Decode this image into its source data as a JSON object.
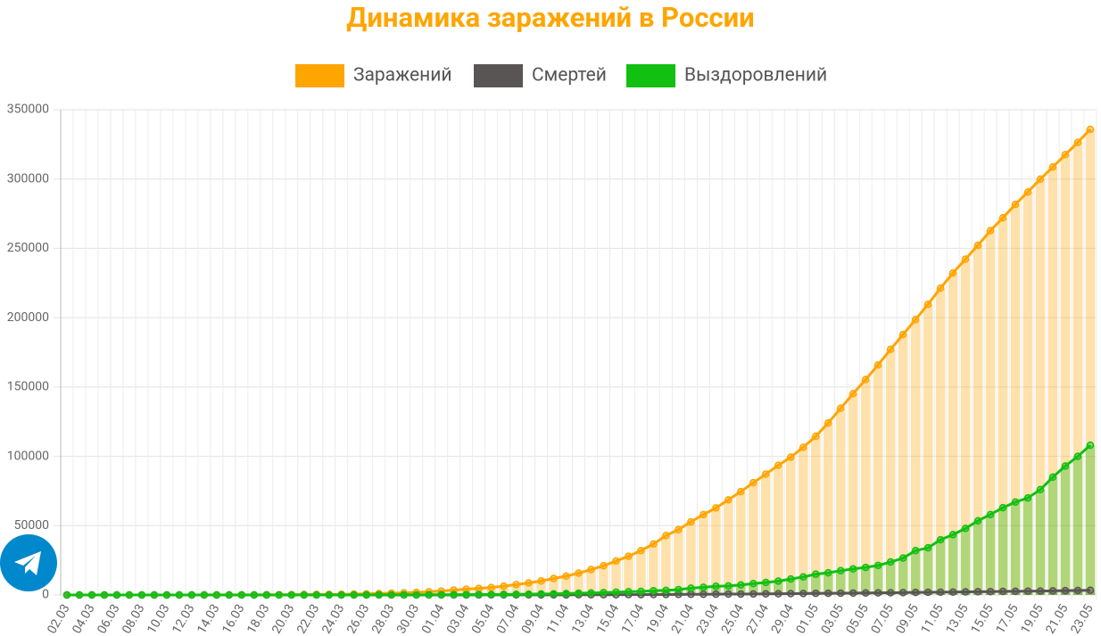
{
  "chart_data": {
    "type": "bar-line",
    "title": "Динамика заражений в России",
    "categories": [
      "02.03",
      null,
      "04.03",
      null,
      "06.03",
      null,
      "08.03",
      null,
      "10.03",
      null,
      "12.03",
      null,
      "14.03",
      null,
      "16.03",
      null,
      "18.03",
      null,
      "20.03",
      null,
      "22.03",
      null,
      "24.03",
      null,
      "26.03",
      null,
      "28.03",
      null,
      "30.03",
      null,
      "01.04",
      null,
      "03.04",
      null,
      "05.04",
      null,
      "07.04",
      null,
      "09.04",
      null,
      "11.04",
      null,
      "13.04",
      null,
      "15.04",
      null,
      "17.04",
      null,
      "19.04",
      null,
      "21.04",
      null,
      "23.04",
      null,
      "25.04",
      null,
      "27.04",
      null,
      "29.04",
      null,
      "01.05",
      null,
      "03.05",
      null,
      "05.05",
      null,
      "07.05",
      null,
      "09.05",
      null,
      "11.05",
      null,
      "13.05",
      null,
      "15.05",
      null,
      "17.05",
      null,
      "19.05",
      null,
      "21.05",
      null,
      "23.05"
    ],
    "series": [
      {
        "name": "Заражений",
        "color": "#ffa500",
        "values": [
          3,
          3,
          3,
          4,
          13,
          13,
          17,
          17,
          20,
          28,
          34,
          45,
          59,
          63,
          93,
          114,
          147,
          199,
          253,
          306,
          367,
          438,
          495,
          658,
          840,
          1036,
          1264,
          1534,
          1836,
          2337,
          2777,
          3548,
          4149,
          4731,
          5389,
          6343,
          7497,
          8672,
          10131,
          11917,
          13584,
          15770,
          18328,
          21102,
          24490,
          27938,
          32008,
          36793,
          42853,
          47121,
          52763,
          57999,
          62773,
          68622,
          74588,
          80949,
          87147,
          93558,
          99399,
          106498,
          114431,
          124054,
          134687,
          145268,
          155370,
          165929,
          177160,
          187859,
          198676,
          209688,
          221344,
          232243,
          242271,
          252245,
          262843,
          272043,
          281752,
          290678,
          299941,
          308705,
          317554,
          326448,
          335882
        ]
      },
      {
        "name": "Смертей",
        "color": "#5a5555",
        "values": [
          0,
          0,
          0,
          0,
          0,
          0,
          0,
          0,
          0,
          0,
          0,
          0,
          0,
          0,
          0,
          0,
          0,
          1,
          1,
          1,
          1,
          1,
          1,
          3,
          3,
          4,
          4,
          8,
          9,
          17,
          22,
          30,
          34,
          43,
          45,
          47,
          58,
          63,
          76,
          94,
          106,
          130,
          148,
          170,
          198,
          232,
          273,
          313,
          361,
          405,
          456,
          513,
          555,
          615,
          681,
          747,
          794,
          867,
          972,
          1073,
          1169,
          1222,
          1280,
          1356,
          1451,
          1537,
          1625,
          1723,
          1827,
          1915,
          2009,
          2116,
          2212,
          2305,
          2418,
          2537,
          2631,
          2722,
          2837,
          2972,
          3099,
          3249,
          3388
        ]
      },
      {
        "name": "Выздоровлений",
        "color": "#11c011",
        "values": [
          0,
          0,
          0,
          0,
          0,
          2,
          2,
          2,
          2,
          2,
          2,
          2,
          2,
          5,
          5,
          5,
          5,
          9,
          12,
          12,
          16,
          17,
          22,
          29,
          38,
          49,
          49,
          64,
          66,
          121,
          190,
          235,
          281,
          333,
          355,
          406,
          494,
          580,
          698,
          795,
          1045,
          1291,
          1470,
          1694,
          1986,
          2304,
          2590,
          3057,
          3291,
          3873,
          4891,
          5568,
          6250,
          6480,
          7212,
          8212,
          9000,
          10000,
          11500,
          13000,
          15000,
          16000,
          17500,
          18800,
          19900,
          21300,
          23800,
          26600,
          32000,
          34000,
          39800,
          43500,
          48000,
          53500,
          58000,
          63000,
          67000,
          70000,
          76000,
          85000,
          93000,
          100000,
          108000
        ]
      }
    ],
    "ylim": [
      0,
      350000
    ],
    "yticks": [
      0,
      50000,
      100000,
      150000,
      200000,
      250000,
      300000,
      350000
    ],
    "grid": true
  }
}
